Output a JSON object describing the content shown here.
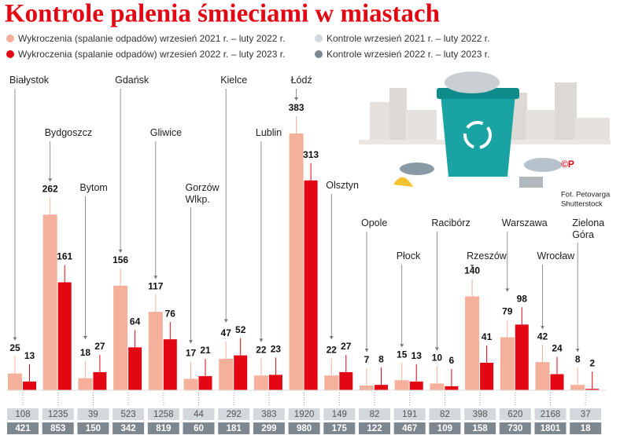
{
  "chart_data": {
    "type": "bar",
    "title": "Kontrole palenia śmieciami w miastach",
    "categories": [
      "Białystok",
      "Bydgoszcz",
      "Bytom",
      "Gdańsk",
      "Gliwice",
      "Gorzów Wlkp.",
      "Kielce",
      "Lublin",
      "Łódź",
      "Olsztyn",
      "Opole",
      "Płock",
      "Racibórz",
      "Rzeszów",
      "Warszawa",
      "Wrocław",
      "Zielona Góra"
    ],
    "series": [
      {
        "name": "Wykroczenia (spalanie odpadów) wrzesień 2021 r. – luty 2022 r.",
        "color": "#f4b09a",
        "values": [
          25,
          262,
          18,
          156,
          117,
          17,
          47,
          22,
          383,
          22,
          7,
          15,
          10,
          140,
          79,
          42,
          8
        ]
      },
      {
        "name": "Wykroczenia (spalanie odpadów) wrzesień 2022 r. – luty 2023 r.",
        "color": "#e30613",
        "values": [
          13,
          161,
          27,
          64,
          76,
          21,
          52,
          23,
          313,
          27,
          8,
          13,
          6,
          41,
          98,
          24,
          2
        ]
      }
    ],
    "table_series": [
      {
        "name": "Kontrole wrzesień 2021 r. – luty 2022 r.",
        "color": "#d3d8dc",
        "values": [
          108,
          1235,
          39,
          523,
          1258,
          44,
          292,
          383,
          1920,
          149,
          82,
          191,
          82,
          398,
          620,
          2168,
          37
        ]
      },
      {
        "name": "Kontrole wrzesień 2022 r. – luty 2023 r.",
        "color": "#7d8790",
        "values": [
          421,
          853,
          150,
          342,
          819,
          60,
          181,
          299,
          980,
          175,
          122,
          467,
          109,
          158,
          730,
          1801,
          18
        ]
      }
    ],
    "credit": [
      "Fot. Petovarga",
      "Shutterstock"
    ]
  }
}
